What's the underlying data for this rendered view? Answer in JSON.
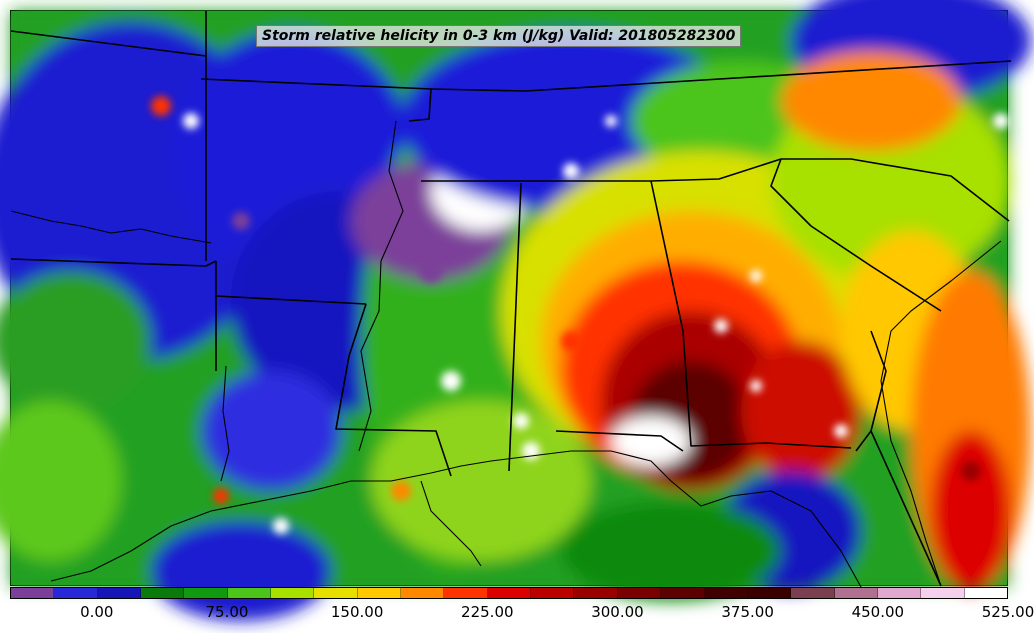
{
  "title": "Storm relative helicity in 0-3 km (J/kg) Valid: 201805282300",
  "colorbar": {
    "colors": [
      "#7b3f9a",
      "#2828d8",
      "#1515b8",
      "#0a7a0a",
      "#119911",
      "#4cc41a",
      "#a8e000",
      "#e6e000",
      "#ffc800",
      "#ff8800",
      "#ff3300",
      "#dd0000",
      "#bb0000",
      "#990000",
      "#7a0000",
      "#5c0000",
      "#400000",
      "#3a0000",
      "#7a4050",
      "#b07090",
      "#e0a8d0",
      "#f4d0ec",
      "#ffffff"
    ],
    "tick_labels": [
      "0.00",
      "75.00",
      "150.00",
      "225.00",
      "300.00",
      "375.00",
      "450.00",
      "525.00"
    ]
  }
}
